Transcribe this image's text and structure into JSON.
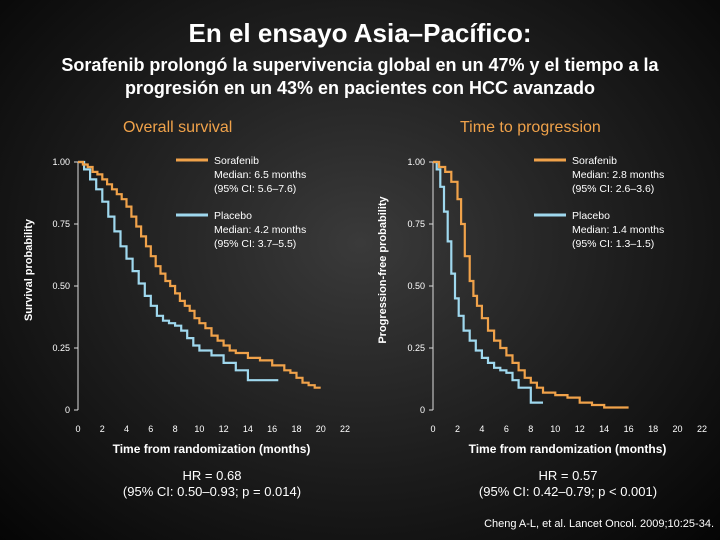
{
  "title": "En el ensayo Asia–Pacífico:",
  "subtitle": "Sorafenib prolongó la supervivencia global en un 47% y el tiempo a la progresión en un 43% en pacientes con HCC avanzado",
  "colors": {
    "sorafenib": "#f0a24a",
    "placebo": "#9fd8ee",
    "text": "#ffffff",
    "panel_title": "#f0a24a"
  },
  "chart_data": [
    {
      "type": "line",
      "panel_title": "Overall survival",
      "xlabel": "Time from randomization (months)",
      "ylabel": "Survival probability",
      "xlim": [
        0,
        22
      ],
      "ylim": [
        0,
        1
      ],
      "xticks": [
        "0",
        "2",
        "4",
        "6",
        "8",
        "10",
        "12",
        "14",
        "16",
        "18",
        "20",
        "22"
      ],
      "yticks": [
        "0",
        "0.25",
        "0.50",
        "0.75",
        "1.00"
      ],
      "series": [
        {
          "name": "Sorafenib",
          "legend_lines": [
            "Sorafenib",
            "Median: 6.5 months",
            "(95% CI: 5.6–7.6)"
          ],
          "x": [
            0,
            0.4,
            0.8,
            1.2,
            1.6,
            2,
            2.4,
            2.8,
            3.2,
            3.6,
            4,
            4.4,
            4.8,
            5.2,
            5.6,
            6,
            6.4,
            6.8,
            7.2,
            7.6,
            8,
            8.4,
            8.8,
            9.2,
            9.6,
            10,
            10.5,
            11,
            11.5,
            12,
            12.5,
            13,
            14,
            15,
            16,
            17,
            17.5,
            18,
            18.5,
            19,
            19.5,
            20
          ],
          "y": [
            1,
            0.99,
            0.98,
            0.96,
            0.95,
            0.93,
            0.91,
            0.89,
            0.87,
            0.85,
            0.82,
            0.78,
            0.74,
            0.7,
            0.66,
            0.62,
            0.58,
            0.55,
            0.52,
            0.5,
            0.47,
            0.44,
            0.42,
            0.4,
            0.37,
            0.35,
            0.33,
            0.3,
            0.28,
            0.26,
            0.24,
            0.23,
            0.21,
            0.2,
            0.18,
            0.16,
            0.15,
            0.13,
            0.11,
            0.1,
            0.09,
            0.09
          ]
        },
        {
          "name": "Placebo",
          "legend_lines": [
            "Placebo",
            "Median: 4.2 months",
            "(95% CI: 3.7–5.5)"
          ],
          "x": [
            0,
            0.5,
            1,
            1.5,
            2,
            2.5,
            3,
            3.5,
            4,
            4.5,
            5,
            5.5,
            6,
            6.5,
            7,
            7.5,
            8,
            8.5,
            9,
            9.5,
            10,
            11,
            12,
            13,
            14,
            15,
            16,
            16.5
          ],
          "y": [
            1,
            0.97,
            0.93,
            0.89,
            0.84,
            0.78,
            0.72,
            0.66,
            0.61,
            0.56,
            0.51,
            0.46,
            0.42,
            0.38,
            0.36,
            0.35,
            0.34,
            0.32,
            0.29,
            0.26,
            0.24,
            0.22,
            0.19,
            0.16,
            0.12,
            0.12,
            0.12,
            0.12
          ]
        }
      ],
      "annotation": [
        "HR = 0.68",
        "(95% CI: 0.50–0.93; p = 0.014)"
      ]
    },
    {
      "type": "line",
      "panel_title": "Time to progression",
      "xlabel": "Time from randomization (months)",
      "ylabel": "Progression-free probability",
      "xlim": [
        0,
        22
      ],
      "ylim": [
        0,
        1
      ],
      "xticks": [
        "0",
        "2",
        "4",
        "6",
        "8",
        "10",
        "12",
        "14",
        "16",
        "18",
        "20",
        "22"
      ],
      "yticks": [
        "0",
        "0.25",
        "0.50",
        "0.75",
        "1.00"
      ],
      "series": [
        {
          "name": "Sorafenib",
          "legend_lines": [
            "Sorafenib",
            "Median: 2.8 months",
            "(95% CI: 2.6–3.6)"
          ],
          "x": [
            0,
            0.5,
            1,
            1.5,
            2,
            2.3,
            2.6,
            3,
            3.3,
            3.6,
            4,
            4.5,
            5,
            5.5,
            6,
            6.5,
            7,
            7.5,
            8,
            8.5,
            9,
            10,
            11,
            12,
            13,
            14,
            16
          ],
          "y": [
            1,
            0.98,
            0.96,
            0.92,
            0.85,
            0.75,
            0.62,
            0.52,
            0.46,
            0.42,
            0.37,
            0.32,
            0.28,
            0.25,
            0.22,
            0.19,
            0.16,
            0.13,
            0.11,
            0.09,
            0.07,
            0.06,
            0.05,
            0.03,
            0.02,
            0.01,
            0.01
          ]
        },
        {
          "name": "Placebo",
          "legend_lines": [
            "Placebo",
            "Median: 1.4 months",
            "(95% CI: 1.3–1.5)"
          ],
          "x": [
            0,
            0.3,
            0.6,
            0.9,
            1.2,
            1.5,
            1.8,
            2.1,
            2.5,
            3,
            3.5,
            4,
            4.5,
            5,
            5.5,
            6,
            6.5,
            7,
            8,
            9
          ],
          "y": [
            1,
            0.97,
            0.9,
            0.8,
            0.68,
            0.55,
            0.45,
            0.38,
            0.32,
            0.28,
            0.24,
            0.21,
            0.19,
            0.17,
            0.16,
            0.15,
            0.12,
            0.09,
            0.03,
            0.03
          ]
        }
      ],
      "annotation": [
        "HR = 0.57",
        "(95% CI: 0.42–0.79; p < 0.001)"
      ]
    }
  ],
  "citation": "Cheng A-L, et al. Lancet Oncol. 2009;10:25-34."
}
